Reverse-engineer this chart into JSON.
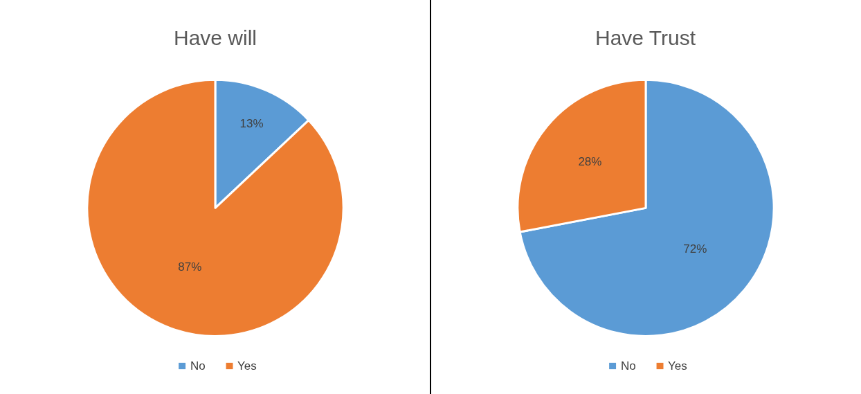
{
  "chart_data": [
    {
      "type": "pie",
      "title": "Have will",
      "categories": [
        "No",
        "Yes"
      ],
      "values": [
        13,
        87
      ],
      "colors": [
        "#5b9bd5",
        "#ed7d31"
      ],
      "value_labels": [
        "13%",
        "87%"
      ],
      "legend": "bottom"
    },
    {
      "type": "pie",
      "title": "Have Trust",
      "categories": [
        "No",
        "Yes"
      ],
      "values": [
        72,
        28
      ],
      "colors": [
        "#5b9bd5",
        "#ed7d31"
      ],
      "value_labels": [
        "72%",
        "28%"
      ],
      "legend": "bottom"
    }
  ]
}
